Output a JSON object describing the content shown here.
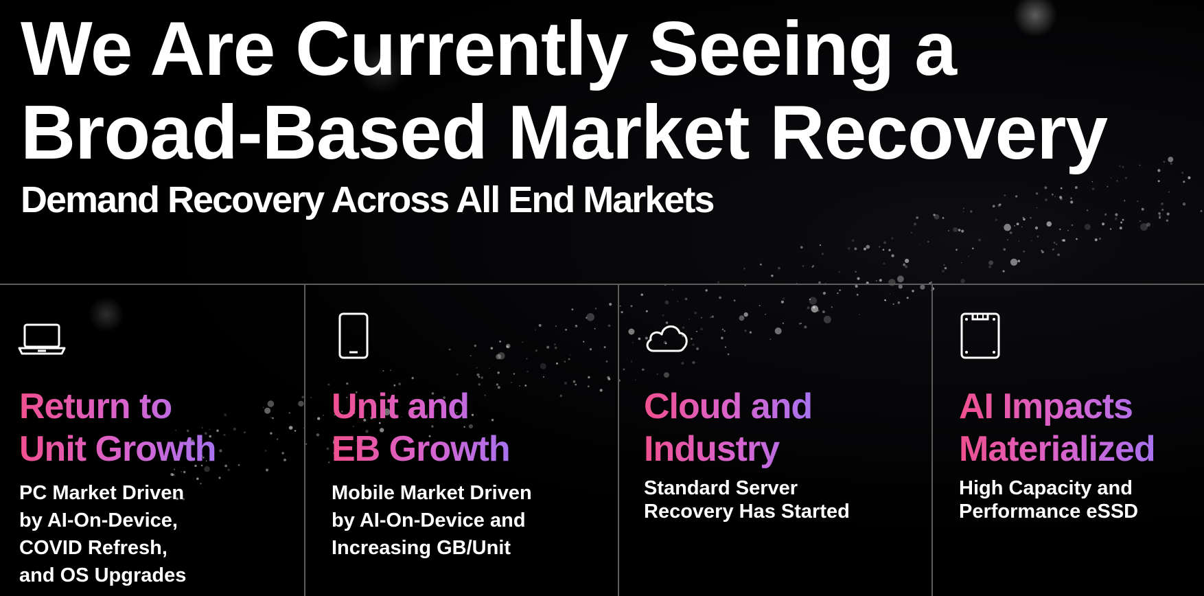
{
  "slide": {
    "title_line1": "We Are Currently Seeing a",
    "title_line2": "Broad-Based Market Recovery",
    "subtitle": "Demand Recovery Across All End Markets"
  },
  "colors": {
    "background": "#000000",
    "text": "#ffffff",
    "divider": "#5d5d5d",
    "heading_gradient_start": "#f0508f",
    "heading_gradient_mid": "#d764cf",
    "heading_gradient_end": "#a772ef"
  },
  "panels": [
    {
      "icon": "laptop-icon",
      "heading": [
        "Return to",
        "Unit Growth"
      ],
      "body": [
        "PC Market Driven",
        "by AI-On-Device,",
        "COVID Refresh,",
        "and OS Upgrades"
      ]
    },
    {
      "icon": "smartphone-icon",
      "heading": [
        "Unit and",
        "EB Growth"
      ],
      "body": [
        "Mobile Market Driven",
        "by AI-On-Device and",
        "Increasing GB/Unit"
      ]
    },
    {
      "icon": "cloud-icon",
      "heading": [
        "Cloud and",
        "Industry"
      ],
      "body": [
        "Standard Server",
        "Recovery Has Started"
      ]
    },
    {
      "icon": "ssd-icon",
      "heading": [
        "AI Impacts",
        "Materialized"
      ],
      "body": [
        "High Capacity and",
        "Performance eSSD"
      ]
    }
  ]
}
